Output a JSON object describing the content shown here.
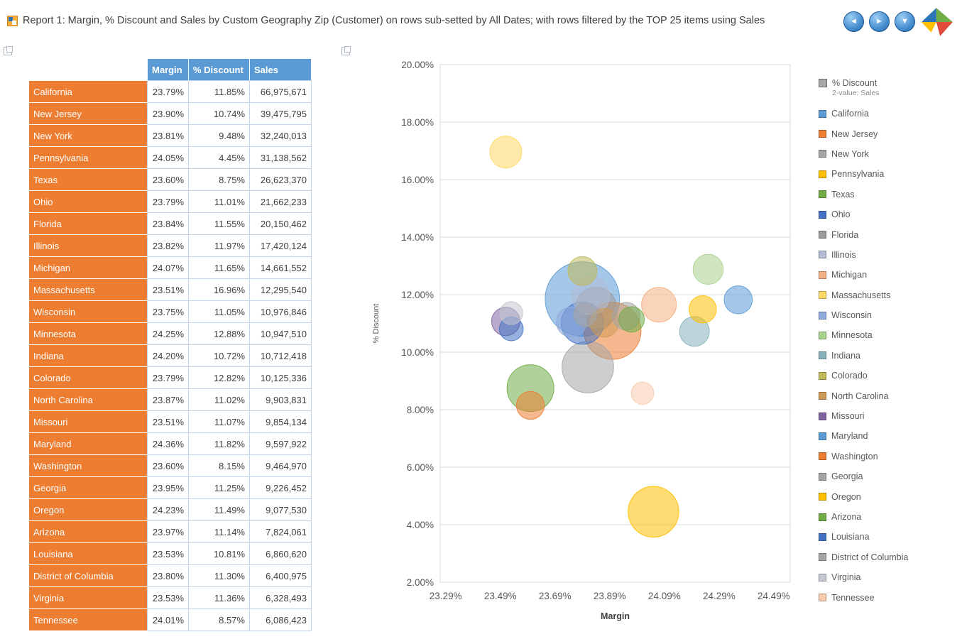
{
  "header": {
    "title": "Report 1: Margin, % Discount and Sales by Custom Geography Zip (Customer) on rows sub-setted by All Dates; with rows filtered by the TOP 25 items using Sales"
  },
  "icons": {
    "nav_back": "◄",
    "nav_forward": "►",
    "nav_down": "▼"
  },
  "table": {
    "columns": [
      "Margin",
      "% Discount",
      "Sales"
    ],
    "rows": [
      [
        "California",
        "23.79%",
        "11.85%",
        "66,975,671"
      ],
      [
        "New Jersey",
        "23.90%",
        "10.74%",
        "39,475,795"
      ],
      [
        "New York",
        "23.81%",
        "9.48%",
        "32,240,013"
      ],
      [
        "Pennsylvania",
        "24.05%",
        "4.45%",
        "31,138,562"
      ],
      [
        "Texas",
        "23.60%",
        "8.75%",
        "26,623,370"
      ],
      [
        "Ohio",
        "23.79%",
        "11.01%",
        "21,662,233"
      ],
      [
        "Florida",
        "23.84%",
        "11.55%",
        "20,150,462"
      ],
      [
        "Illinois",
        "23.82%",
        "11.97%",
        "17,420,124"
      ],
      [
        "Michigan",
        "24.07%",
        "11.65%",
        "14,661,552"
      ],
      [
        "Massachusetts",
        "23.51%",
        "16.96%",
        "12,295,540"
      ],
      [
        "Wisconsin",
        "23.75%",
        "11.05%",
        "10,976,846"
      ],
      [
        "Minnesota",
        "24.25%",
        "12.88%",
        "10,947,510"
      ],
      [
        "Indiana",
        "24.20%",
        "10.72%",
        "10,712,418"
      ],
      [
        "Colorado",
        "23.79%",
        "12.82%",
        "10,125,336"
      ],
      [
        "North Carolina",
        "23.87%",
        "11.02%",
        "9,903,831"
      ],
      [
        "Missouri",
        "23.51%",
        "11.07%",
        "9,854,134"
      ],
      [
        "Maryland",
        "24.36%",
        "11.82%",
        "9,597,922"
      ],
      [
        "Washington",
        "23.60%",
        "8.15%",
        "9,464,970"
      ],
      [
        "Georgia",
        "23.95%",
        "11.25%",
        "9,226,452"
      ],
      [
        "Oregon",
        "24.23%",
        "11.49%",
        "9,077,530"
      ],
      [
        "Arizona",
        "23.97%",
        "11.14%",
        "7,824,061"
      ],
      [
        "Louisiana",
        "23.53%",
        "10.81%",
        "6,860,620"
      ],
      [
        "District of Columbia",
        "23.80%",
        "11.30%",
        "6,400,975"
      ],
      [
        "Virginia",
        "23.53%",
        "11.36%",
        "6,328,493"
      ],
      [
        "Tennessee",
        "24.01%",
        "8.57%",
        "6,086,423"
      ]
    ]
  },
  "chart_data": {
    "type": "scatter",
    "subtype": "bubble",
    "xlabel": "Margin",
    "ylabel": "% Discount",
    "size_field": "Sales",
    "xlim": [
      23.27,
      24.55
    ],
    "ylim": [
      2,
      20
    ],
    "x_ticks": [
      "23.29%",
      "23.49%",
      "23.69%",
      "23.89%",
      "24.09%",
      "24.29%",
      "24.49%"
    ],
    "x_tick_values": [
      23.29,
      23.49,
      23.69,
      23.89,
      24.09,
      24.29,
      24.49
    ],
    "y_ticks": [
      "20.00%",
      "18.00%",
      "16.00%",
      "14.00%",
      "12.00%",
      "10.00%",
      "8.00%",
      "6.00%",
      "4.00%",
      "2.00%"
    ],
    "y_tick_values": [
      20,
      18,
      16,
      14,
      12,
      10,
      8,
      6,
      4,
      2
    ],
    "grid": "horizontal",
    "legend_position": "right",
    "legend_title": "% Discount",
    "legend_subtitle": "2-value: Sales",
    "series": [
      {
        "name": "California",
        "x": 23.79,
        "y": 11.85,
        "size": 66975671,
        "color": "#5b9bd5"
      },
      {
        "name": "New Jersey",
        "x": 23.9,
        "y": 10.74,
        "size": 39475795,
        "color": "#ed7d31"
      },
      {
        "name": "New York",
        "x": 23.81,
        "y": 9.48,
        "size": 32240013,
        "color": "#a5a5a5"
      },
      {
        "name": "Pennsylvania",
        "x": 24.05,
        "y": 4.45,
        "size": 31138562,
        "color": "#ffc000"
      },
      {
        "name": "Texas",
        "x": 23.6,
        "y": 8.75,
        "size": 26623370,
        "color": "#70ad47"
      },
      {
        "name": "Ohio",
        "x": 23.79,
        "y": 11.01,
        "size": 21662233,
        "color": "#4472c4"
      },
      {
        "name": "Florida",
        "x": 23.84,
        "y": 11.55,
        "size": 20150462,
        "color": "#9b9b9b"
      },
      {
        "name": "Illinois",
        "x": 23.82,
        "y": 11.97,
        "size": 17420124,
        "color": "#b3bcd4"
      },
      {
        "name": "Michigan",
        "x": 24.07,
        "y": 11.65,
        "size": 14661552,
        "color": "#f4b183"
      },
      {
        "name": "Massachusetts",
        "x": 23.51,
        "y": 16.96,
        "size": 12295540,
        "color": "#ffd966"
      },
      {
        "name": "Wisconsin",
        "x": 23.75,
        "y": 11.05,
        "size": 10976846,
        "color": "#8faadc"
      },
      {
        "name": "Minnesota",
        "x": 24.25,
        "y": 12.88,
        "size": 10947510,
        "color": "#a9d18e"
      },
      {
        "name": "Indiana",
        "x": 24.2,
        "y": 10.72,
        "size": 10712418,
        "color": "#87b1bb"
      },
      {
        "name": "Colorado",
        "x": 23.79,
        "y": 12.82,
        "size": 10125336,
        "color": "#c0ba59"
      },
      {
        "name": "North Carolina",
        "x": 23.87,
        "y": 11.02,
        "size": 9903831,
        "color": "#cf9a58"
      },
      {
        "name": "Missouri",
        "x": 23.51,
        "y": 11.07,
        "size": 9854134,
        "color": "#8064a2"
      },
      {
        "name": "Maryland",
        "x": 24.36,
        "y": 11.82,
        "size": 9597922,
        "color": "#5b9bd5"
      },
      {
        "name": "Washington",
        "x": 23.6,
        "y": 8.15,
        "size": 9464970,
        "color": "#ed7d31"
      },
      {
        "name": "Georgia",
        "x": 23.95,
        "y": 11.25,
        "size": 9226452,
        "color": "#a5a5a5"
      },
      {
        "name": "Oregon",
        "x": 24.23,
        "y": 11.49,
        "size": 9077530,
        "color": "#ffc000"
      },
      {
        "name": "Arizona",
        "x": 23.97,
        "y": 11.14,
        "size": 7824061,
        "color": "#70ad47"
      },
      {
        "name": "Louisiana",
        "x": 23.53,
        "y": 10.81,
        "size": 6860620,
        "color": "#4472c4"
      },
      {
        "name": "District of Columbia",
        "x": 23.8,
        "y": 11.3,
        "size": 6400975,
        "color": "#a5a5a5"
      },
      {
        "name": "Virginia",
        "x": 23.53,
        "y": 11.36,
        "size": 6328493,
        "color": "#c3c7cf"
      },
      {
        "name": "Tennessee",
        "x": 24.01,
        "y": 8.57,
        "size": 6086423,
        "color": "#f8cbad"
      }
    ]
  }
}
